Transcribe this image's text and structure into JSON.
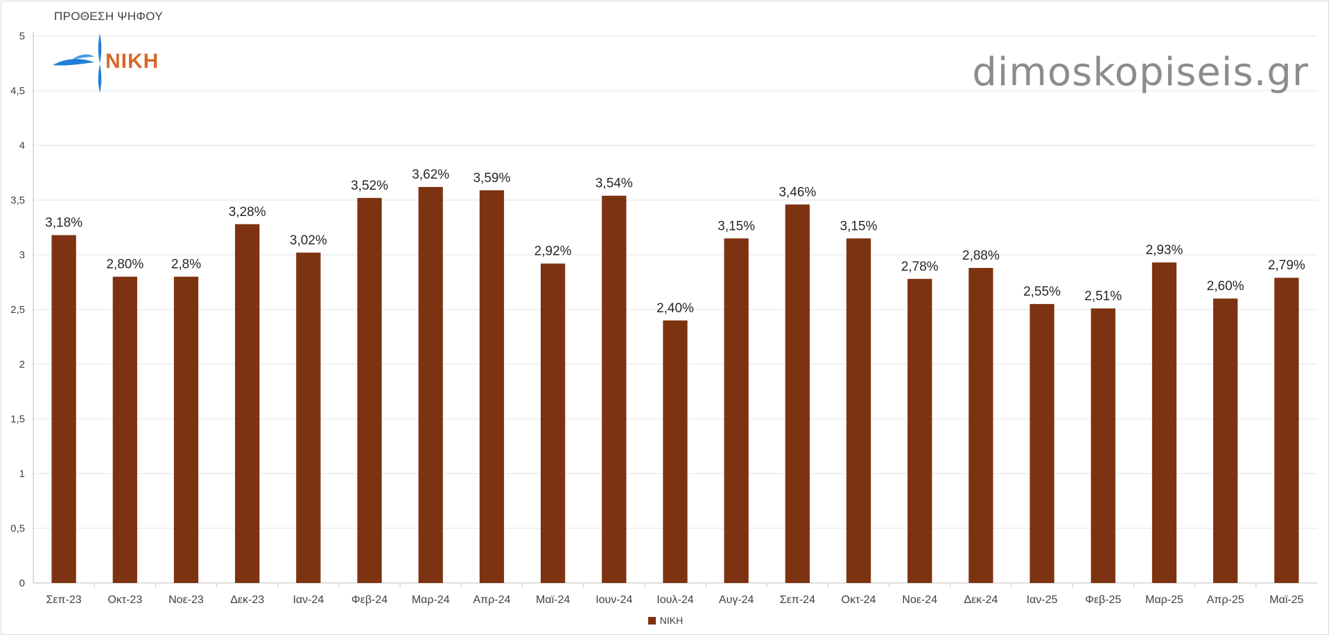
{
  "chart_data": {
    "type": "bar",
    "title": "ΠΡΟΘΕΣΗ ΨΗΦΟΥ",
    "xlabel": "",
    "ylabel": "",
    "ylim": [
      0,
      5
    ],
    "yticks": [
      "0",
      "0,5",
      "1",
      "1,5",
      "2",
      "2,5",
      "3",
      "3,5",
      "4",
      "4,5",
      "5"
    ],
    "grid": true,
    "legend_position": "bottom",
    "categories": [
      "Σεπ-23",
      "Οκτ-23",
      "Νοε-23",
      "Δεκ-23",
      "Ιαν-24",
      "Φεβ-24",
      "Μαρ-24",
      "Απρ-24",
      "Μαϊ-24",
      "Ιουν-24",
      "Ιουλ-24",
      "Αυγ-24",
      "Σεπ-24",
      "Οκτ-24",
      "Νοε-24",
      "Δεκ-24",
      "Ιαν-25",
      "Φεβ-25",
      "Μαρ-25",
      "Απρ-25",
      "Μαϊ-25"
    ],
    "series": [
      {
        "name": "ΝΙΚΗ",
        "color": "#7d3311",
        "values": [
          3.18,
          2.8,
          2.8,
          3.28,
          3.02,
          3.52,
          3.62,
          3.59,
          2.92,
          3.54,
          2.4,
          3.15,
          3.46,
          3.15,
          2.78,
          2.88,
          2.55,
          2.51,
          2.93,
          2.6,
          2.79
        ],
        "labels": [
          "3,18%",
          "2,80%",
          "2,8%",
          "3,28%",
          "3,02%",
          "3,52%",
          "3,62%",
          "3,59%",
          "2,92%",
          "3,54%",
          "2,40%",
          "3,15%",
          "3,46%",
          "3,15%",
          "2,78%",
          "2,88%",
          "2,55%",
          "2,51%",
          "2,93%",
          "2,60%",
          "2,79%"
        ]
      }
    ]
  },
  "logo": {
    "text": "ΝΙΚΗ",
    "color": "#d9672a",
    "accent": "#1f7fd6"
  },
  "watermark": "dimoskopiseis.gr",
  "legend": {
    "label": "ΝΙΚΗ",
    "color": "#7d3311"
  }
}
